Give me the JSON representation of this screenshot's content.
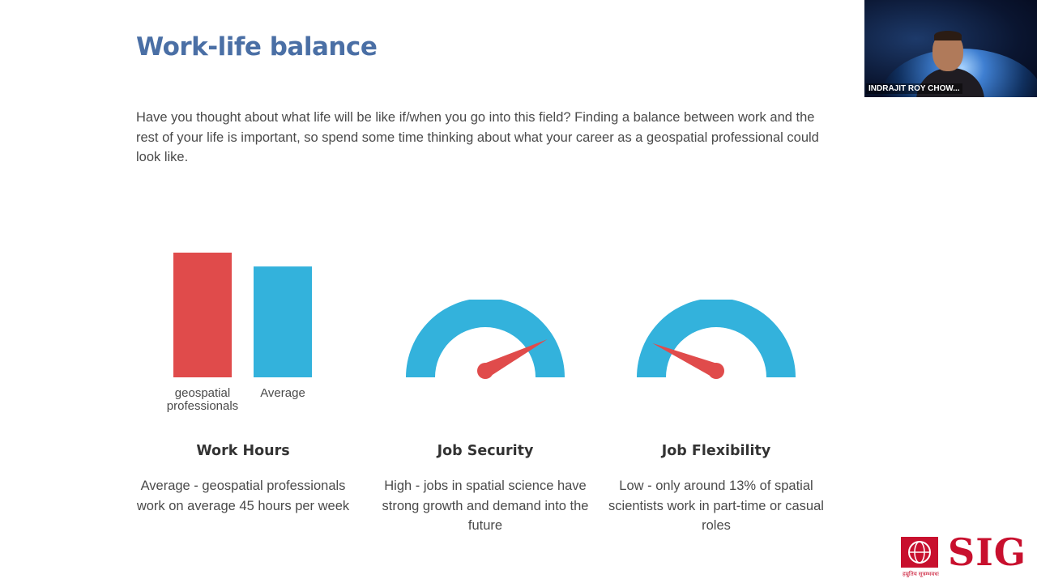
{
  "slide": {
    "title": "Work-life balance",
    "intro": "Have you thought about what life will be like if/when you go into this field? Finding a balance between work and the rest of your life is important, so spend some time thinking about what your career as a geospatial professional could look like."
  },
  "video": {
    "participant_name": "INDRAJIT ROY CHOW..."
  },
  "chart_data": {
    "type": "bar",
    "categories": [
      "geospatial professionals",
      "Average"
    ],
    "values": [
      45,
      40
    ],
    "colors": [
      "#e04b4b",
      "#33b2dc"
    ]
  },
  "bar_labels": {
    "geo_line1": "geospatial",
    "geo_line2": "professionals",
    "average": "Average"
  },
  "gauges": {
    "job_security": {
      "level": 0.85,
      "arc_color": "#33b2dc",
      "needle_color": "#e04b4b"
    },
    "job_flexibility": {
      "level": 0.13,
      "arc_color": "#33b2dc",
      "needle_color": "#e04b4b"
    }
  },
  "columns": [
    {
      "heading": "Work Hours",
      "desc": "Average - geospatial professionals work on average 45 hours per week"
    },
    {
      "heading": "Job Security",
      "desc": "High - jobs in spatial science have strong growth and demand into the future"
    },
    {
      "heading": "Job Flexibility",
      "desc": "Low - only around 13% of spatial scientists work in part-time or casual roles"
    }
  ],
  "logo": {
    "text": "SIG",
    "tagline": "हम्रुतिय सूत्रम्भवधः",
    "color": "#c8102e"
  }
}
